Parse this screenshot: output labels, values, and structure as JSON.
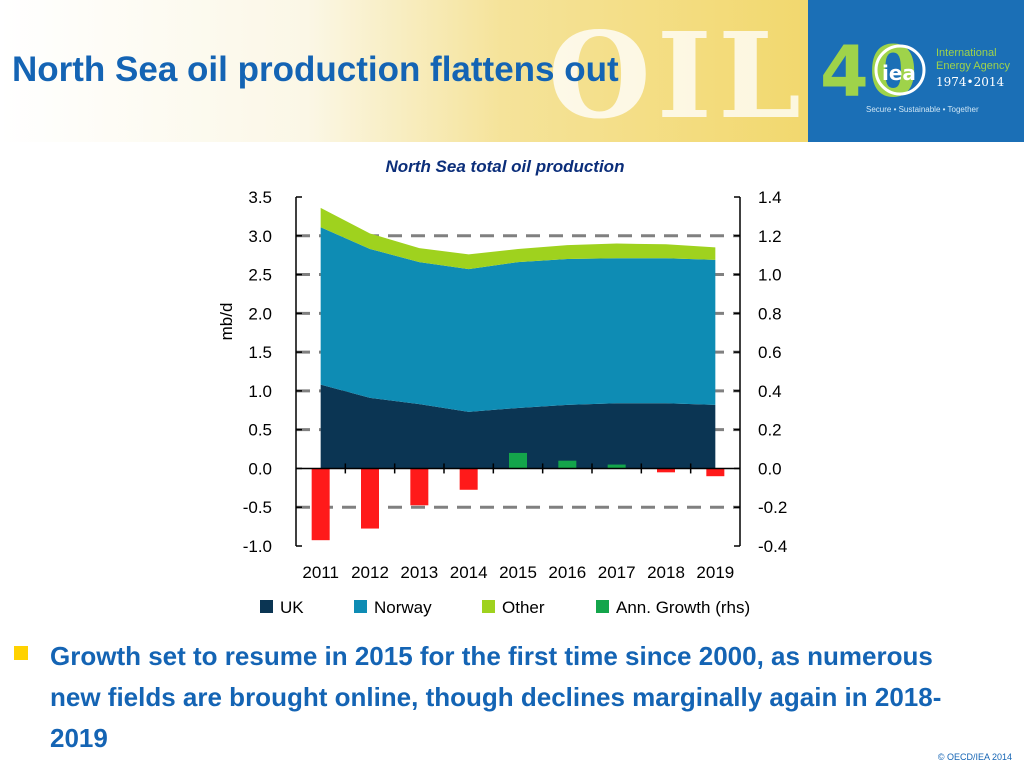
{
  "slide": {
    "title": "North Sea oil production flattens out",
    "background_word": "OIL",
    "bullet": "Growth set to resume in 2015 for the first time since 2000, as numerous new fields are brought online, though declines marginally again in 2018-2019",
    "copyright": "© OECD/IEA 2014"
  },
  "brand": {
    "anniversary": "40",
    "logo_text": "iea",
    "org_line1": "International",
    "org_line2": "Energy Agency",
    "years": "1974•2014",
    "tagline": "Secure • Sustainable • Together",
    "colors": {
      "background": "#1b6fb6",
      "accent": "#9fd34a",
      "text": "#ffffff"
    }
  },
  "chart_data": {
    "type": "area",
    "title": "North Sea total oil production",
    "ylabel": "mb/d",
    "categories": [
      "2011",
      "2012",
      "2013",
      "2014",
      "2015",
      "2016",
      "2017",
      "2018",
      "2019"
    ],
    "ylim": [
      -1.0,
      3.5
    ],
    "yticks": [
      "3.5",
      "3.0",
      "2.5",
      "2.0",
      "1.5",
      "1.0",
      "0.5",
      "0.0",
      "-0.5",
      "-1.0"
    ],
    "y2lim": [
      -0.4,
      1.4
    ],
    "y2ticks": [
      "1.4",
      "1.2",
      "1.0",
      "0.8",
      "0.6",
      "0.4",
      "0.2",
      "0.0",
      "-0.2",
      "-0.4"
    ],
    "gridlines_dashed": [
      3.0,
      2.5,
      2.0,
      1.5,
      1.0,
      0.5,
      -0.5
    ],
    "series": [
      {
        "name": "UK",
        "kind": "stacked-area",
        "color": "#0b3553",
        "values": [
          1.08,
          0.91,
          0.83,
          0.73,
          0.78,
          0.82,
          0.84,
          0.84,
          0.82
        ]
      },
      {
        "name": "Norway",
        "kind": "stacked-area",
        "color": "#0e8cb4",
        "values": [
          2.03,
          1.92,
          1.83,
          1.84,
          1.88,
          1.88,
          1.87,
          1.87,
          1.87
        ]
      },
      {
        "name": "Other",
        "kind": "stacked-area",
        "color": "#9fd21e",
        "values": [
          0.25,
          0.2,
          0.18,
          0.19,
          0.17,
          0.18,
          0.19,
          0.18,
          0.16
        ]
      },
      {
        "name": "Ann. Growth (rhs)",
        "kind": "bar-rhs",
        "color": "#14a54b",
        "negative_color": "#ff1a1a",
        "values": [
          -0.37,
          -0.31,
          -0.19,
          -0.11,
          0.08,
          0.04,
          0.02,
          -0.02,
          -0.04
        ]
      }
    ],
    "legend_position": "bottom"
  }
}
